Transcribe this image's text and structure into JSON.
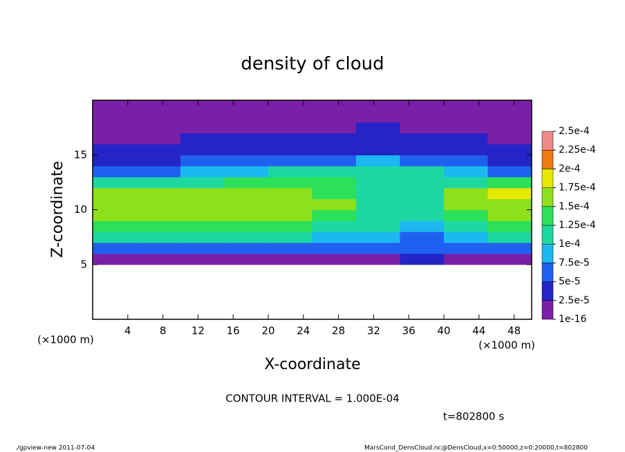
{
  "chart_data": {
    "type": "heatmap",
    "title": "density of cloud",
    "xlabel": "X-coordinate",
    "ylabel": "Z-coordinate",
    "x_unit_label": "(×1000 m)",
    "y_unit_label": "(×1000 m)",
    "xlim": [
      0,
      50
    ],
    "xticks": [
      4,
      8,
      12,
      16,
      20,
      24,
      28,
      32,
      36,
      40,
      44,
      48
    ],
    "ylim": [
      0,
      20
    ],
    "yticks": [
      5,
      10,
      15
    ],
    "x_bins": [
      0,
      5,
      10,
      15,
      20,
      25,
      30,
      35,
      40,
      45,
      50
    ],
    "z_bins": [
      5,
      6,
      7,
      8,
      9,
      10,
      11,
      12,
      13,
      14,
      15,
      16,
      17,
      18,
      19,
      20
    ],
    "values": [
      [
        2e-05,
        2e-05,
        2e-05,
        2e-05,
        2e-05,
        2e-05,
        2e-05,
        4e-05,
        2e-05,
        2e-05
      ],
      [
        6e-05,
        6e-05,
        6e-05,
        6e-05,
        6e-05,
        6e-05,
        6e-05,
        5e-05,
        6e-05,
        6e-05
      ],
      [
        0.000105,
        0.0001,
        0.000105,
        0.0001,
        0.0001,
        9e-05,
        8e-05,
        7e-05,
        9e-05,
        0.000105
      ],
      [
        0.00013,
        0.00013,
        0.000135,
        0.00013,
        0.00013,
        0.00012,
        0.0001,
        9e-05,
        0.00011,
        0.00013
      ],
      [
        0.00015,
        0.000155,
        0.00015,
        0.00015,
        0.00015,
        0.00014,
        0.00011,
        0.0001,
        0.00013,
        0.000155
      ],
      [
        0.00016,
        0.000165,
        0.00016,
        0.00016,
        0.00016,
        0.00015,
        0.00012,
        0.000105,
        0.00015,
        0.00017
      ],
      [
        0.000165,
        0.00016,
        0.00016,
        0.00015,
        0.00015,
        0.00014,
        0.00012,
        0.000105,
        0.000155,
        0.000175
      ],
      [
        0.00012,
        0.00012,
        0.00012,
        0.00013,
        0.00013,
        0.00013,
        0.000115,
        0.00011,
        0.00012,
        0.00013
      ],
      [
        7e-05,
        7e-05,
        8e-05,
        9e-05,
        0.0001,
        0.000105,
        0.000105,
        0.000105,
        8e-05,
        7e-05
      ],
      [
        4e-05,
        4e-05,
        5e-05,
        5e-05,
        6e-05,
        7e-05,
        8e-05,
        7e-05,
        5e-05,
        4e-05
      ],
      [
        3e-05,
        3e-05,
        3e-05,
        3e-05,
        4e-05,
        4e-05,
        4e-05,
        4e-05,
        3e-05,
        3e-05
      ],
      [
        2e-05,
        2e-05,
        2.5e-05,
        3e-05,
        3e-05,
        3e-05,
        3e-05,
        3e-05,
        2.5e-05,
        2e-05
      ],
      [
        1e-05,
        1e-05,
        1.5e-05,
        2e-05,
        2e-05,
        2e-05,
        2.5e-05,
        2e-05,
        1.5e-05,
        1e-05
      ],
      [
        5e-06,
        5e-06,
        1e-05,
        1e-05,
        1e-05,
        1e-05,
        1e-05,
        1e-05,
        5e-06,
        5e-06
      ],
      [
        5e-06,
        5e-06,
        5e-06,
        5e-06,
        5e-06,
        5e-06,
        5e-06,
        5e-06,
        5e-06,
        5e-06
      ]
    ],
    "colorbar_ticks": [
      {
        "value": 1e-16,
        "label": "1e-16"
      },
      {
        "value": 2.5e-05,
        "label": "2.5e-5"
      },
      {
        "value": 5e-05,
        "label": "5e-5"
      },
      {
        "value": 7.5e-05,
        "label": "7.5e-5"
      },
      {
        "value": 0.0001,
        "label": "1e-4"
      },
      {
        "value": 0.000125,
        "label": "1.25e-4"
      },
      {
        "value": 0.00015,
        "label": "1.5e-4"
      },
      {
        "value": 0.000175,
        "label": "1.75e-4"
      },
      {
        "value": 0.0002,
        "label": "2e-4"
      },
      {
        "value": 0.000225,
        "label": "2.25e-4"
      },
      {
        "value": 0.00025,
        "label": "2.5e-4"
      }
    ],
    "colors": [
      "#7a1fa8",
      "#2424c8",
      "#1f60f0",
      "#1cb8f0",
      "#1cd8a0",
      "#2ce05a",
      "#8ee01a",
      "#e8e800",
      "#f07a10",
      "#f08a8a"
    ],
    "contour_interval": "CONTOUR INTERVAL = 1.000E-04",
    "time_label": "t=802800 s",
    "footer_left": "./gpview-new  2011-07-04",
    "footer_right": "MarsCond_DensCloud.nc@DensCloud,x=0:50000,z=0:20000,t=802800"
  }
}
